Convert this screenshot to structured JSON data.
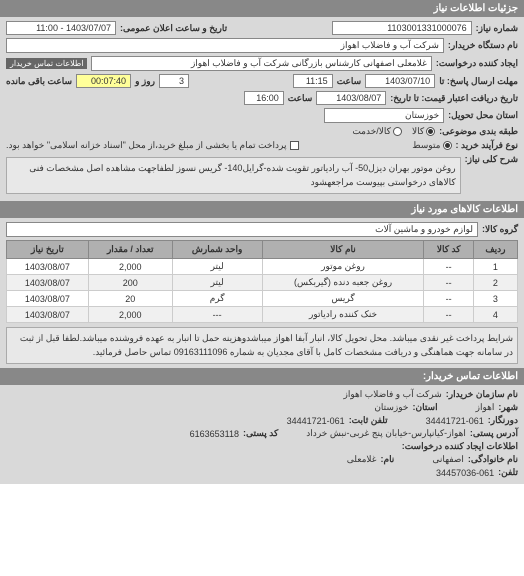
{
  "headers": {
    "need_info": "جزئیات اطلاعات نیاز"
  },
  "need": {
    "number_label": "شماره نیاز:",
    "number": "1103001331000076",
    "announce_label": "تاریخ و ساعت اعلان عمومی:",
    "announce": "1403/07/07 - 11:00",
    "buyer_name_label": "نام دستگاه خریدار:",
    "buyer_name": "شرکت آب و فاضلاب اهواز",
    "requester_label": "ایجاد کننده درخواست:",
    "requester": "غلامعلی اصفهانی کارشناس بازرگانی شرکت آب و فاضلاب اهواز",
    "contact_link": "اطلاعات تماس خریدار",
    "deadline_label": "مهلت ارسال پاسخ: تا",
    "deadline_date": "1403/07/10",
    "hour_label": "ساعت",
    "deadline_time": "11:15",
    "remain_mid": "روز و",
    "remain_days": "3",
    "remain_time": "00:07:40",
    "remain_suffix": "ساعت باقی مانده",
    "delivery_from_label": "تاریخ دریافت اعتبار قیمت: تا تاریخ:",
    "delivery_date": "1403/08/07",
    "delivery_time": "16:00",
    "location_label": "استان محل تحویل:",
    "location": "خوزستان",
    "budget_type_label": "طبقه بندی موضوعی:",
    "budget_goods": "کالا",
    "budget_service": "کالا/خدمت",
    "budget_medium": "متوسط",
    "process_label": "نوع فرآیند خرید :",
    "payment_note": "پرداخت تمام یا بخشی از مبلغ خرید،از محل \"اسناد خزانه اسلامی\" خواهد بود.",
    "desc_label": "شرح کلی نیاز:",
    "desc": "روغن موتور بهران دیزل50- آب رادیاتور تقویت شده-گرایل140- گریس نسوز لطفاجهت مشاهده اصل مشخصات فنی کالاهای درخواستی بپیوست مراجعهشود"
  },
  "goods": {
    "header": "اطلاعات کالاهای مورد نیاز",
    "group_label": "گروه کالا:",
    "group": "لوازم خودرو و ماشین آلات",
    "columns": {
      "row": "ردیف",
      "code": "کد کالا",
      "name": "نام کالا",
      "unit": "واحد شمارش",
      "qty": "تعداد / مقدار",
      "date": "تاریخ نیاز"
    },
    "rows": [
      {
        "n": "1",
        "code": "--",
        "name": "روغن موتور",
        "unit": "لیتر",
        "qty": "2,000",
        "date": "1403/08/07"
      },
      {
        "n": "2",
        "code": "--",
        "name": "روغن جعبه دنده (گیربکس)",
        "unit": "لیتر",
        "qty": "200",
        "date": "1403/08/07"
      },
      {
        "n": "3",
        "code": "--",
        "name": "گریس",
        "unit": "گرم",
        "qty": "20",
        "date": "1403/08/07"
      },
      {
        "n": "4",
        "code": "--",
        "name": "خنک کننده رادیاتور",
        "unit": "---",
        "qty": "2,000",
        "date": "1403/08/07"
      }
    ],
    "conditions": "شرایط پرداخت غیر نقدی میباشد. محل تحویل کالا، انبار آبفا اهواز میباشدوهزینه حمل تا انبار به عهده فروشنده میباشد.لطفا قبل از ثبت در سامانه جهت هماهنگی و دریافت مشخصات کامل با آقای مجدیان به شماره 09163111096 تماس حاصل فرمائید."
  },
  "contact": {
    "header": "اطلاعات تماس خریدار:",
    "org_label": "نام سازمان خریدار:",
    "org": "شرکت آب و فاضلاب اهواز",
    "city_label": "شهر:",
    "city": "اهواز",
    "province_label": "استان:",
    "province": "خوزستان",
    "fax_label": "دورنگار:",
    "fax": "34441721-061",
    "phone_label": "تلفن ثابت:",
    "phone": "34441721-061",
    "postal_addr_label": "آدرس پستی:",
    "postal_addr": "اهواز-کیانپارس-خیابان پنج غربی-نبش خرداد",
    "postal_code_label": "کد پستی:",
    "postal_code": "6163653118",
    "req_creator_label": "اطلاعات ایجاد کننده درخواست:",
    "family_label": "نام خانوادگی:",
    "family": "اصفهانی",
    "name_label": "نام:",
    "name": "غلامعلی",
    "tel_label": "تلفن:",
    "tel": "34457036-061"
  }
}
